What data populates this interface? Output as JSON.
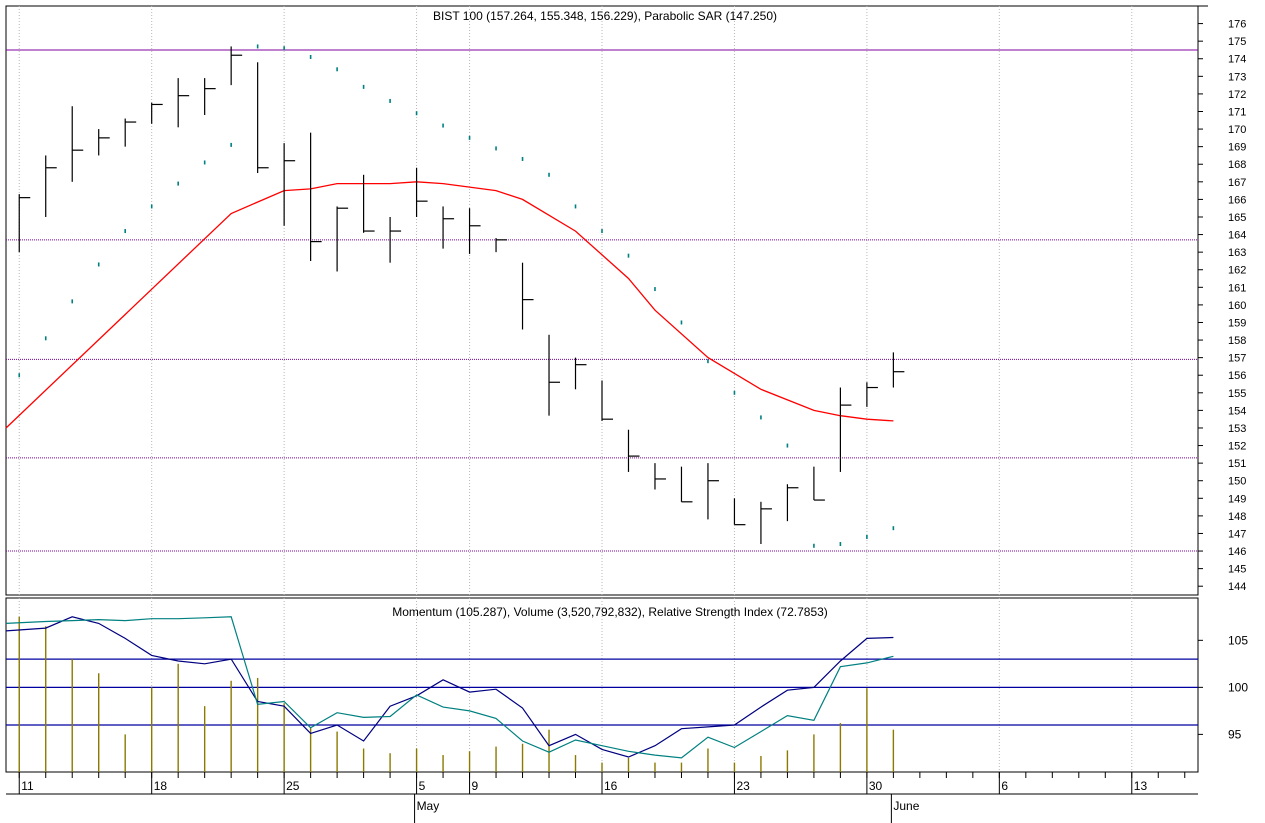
{
  "chart_data": [
    {
      "type": "ohlc",
      "title": "BIST 100 (157.264, 155.348, 156.229), Parabolic SAR (147.250)",
      "ylim": [
        143.5,
        177
      ],
      "y_ticks": [
        144,
        145,
        146,
        147,
        148,
        149,
        150,
        151,
        152,
        153,
        154,
        155,
        156,
        157,
        158,
        159,
        160,
        161,
        162,
        163,
        164,
        165,
        166,
        167,
        168,
        169,
        170,
        171,
        172,
        173,
        174,
        175,
        176
      ],
      "horizontal_lines": [
        {
          "value": 174.5,
          "color": "#8000a0",
          "style": "solid"
        },
        {
          "value": 163.7,
          "color": "#8000a0",
          "style": "dotted"
        },
        {
          "value": 156.9,
          "color": "#8000a0",
          "style": "dotted"
        },
        {
          "value": 151.3,
          "color": "#8000a0",
          "style": "dotted"
        },
        {
          "value": 146.0,
          "color": "#8000a0",
          "style": "dotted"
        }
      ],
      "bars": [
        {
          "x": 0,
          "o": 164.0,
          "h": 166.3,
          "l": 163.0,
          "c": 166.1
        },
        {
          "x": 1,
          "o": 166.5,
          "h": 168.5,
          "l": 165.0,
          "c": 167.8
        },
        {
          "x": 2,
          "o": 168.0,
          "h": 171.3,
          "l": 167.0,
          "c": 168.8
        },
        {
          "x": 3,
          "o": 169.0,
          "h": 170.0,
          "l": 168.5,
          "c": 169.5
        },
        {
          "x": 4,
          "o": 169.3,
          "h": 170.6,
          "l": 169.0,
          "c": 170.4
        },
        {
          "x": 5,
          "o": 170.6,
          "h": 171.5,
          "l": 170.3,
          "c": 171.4
        },
        {
          "x": 6,
          "o": 171.2,
          "h": 172.9,
          "l": 170.1,
          "c": 171.9
        },
        {
          "x": 7,
          "o": 171.9,
          "h": 172.9,
          "l": 170.8,
          "c": 172.3
        },
        {
          "x": 8,
          "o": 173.9,
          "h": 174.7,
          "l": 172.5,
          "c": 174.2
        },
        {
          "x": 9,
          "o": 173.8,
          "h": 173.8,
          "l": 167.5,
          "c": 167.8
        },
        {
          "x": 10,
          "o": 168.1,
          "h": 169.2,
          "l": 164.5,
          "c": 168.2
        },
        {
          "x": 11,
          "o": 167.4,
          "h": 169.8,
          "l": 162.5,
          "c": 163.6
        },
        {
          "x": 12,
          "o": 164.0,
          "h": 165.6,
          "l": 161.9,
          "c": 165.5
        },
        {
          "x": 13,
          "o": 165.6,
          "h": 167.4,
          "l": 164.1,
          "c": 164.2
        },
        {
          "x": 14,
          "o": 164.3,
          "h": 165.0,
          "l": 162.4,
          "c": 164.2
        },
        {
          "x": 15,
          "o": 167.0,
          "h": 167.8,
          "l": 165.0,
          "c": 165.9
        },
        {
          "x": 16,
          "o": 165.5,
          "h": 165.6,
          "l": 163.2,
          "c": 164.9
        },
        {
          "x": 17,
          "o": 164.9,
          "h": 165.5,
          "l": 162.9,
          "c": 164.5
        },
        {
          "x": 18,
          "o": 163.8,
          "h": 163.8,
          "l": 163.0,
          "c": 163.7
        },
        {
          "x": 19,
          "o": 162.4,
          "h": 162.4,
          "l": 158.6,
          "c": 160.3
        },
        {
          "x": 20,
          "o": 157.0,
          "h": 158.3,
          "l": 153.7,
          "c": 155.6
        },
        {
          "x": 21,
          "o": 156.6,
          "h": 157.0,
          "l": 155.2,
          "c": 156.6
        },
        {
          "x": 22,
          "o": 155.0,
          "h": 155.7,
          "l": 153.4,
          "c": 153.5
        },
        {
          "x": 23,
          "o": 151.7,
          "h": 152.9,
          "l": 150.5,
          "c": 151.4
        },
        {
          "x": 24,
          "o": 151.0,
          "h": 151.0,
          "l": 149.5,
          "c": 150.1
        },
        {
          "x": 25,
          "o": 150.8,
          "h": 150.8,
          "l": 148.8,
          "c": 148.8
        },
        {
          "x": 26,
          "o": 151.0,
          "h": 151.0,
          "l": 147.8,
          "c": 150.0
        },
        {
          "x": 27,
          "o": 149.0,
          "h": 149.0,
          "l": 147.5,
          "c": 147.5
        },
        {
          "x": 28,
          "o": 148.0,
          "h": 148.8,
          "l": 146.4,
          "c": 148.4
        },
        {
          "x": 29,
          "o": 148.0,
          "h": 149.8,
          "l": 147.7,
          "c": 149.6
        },
        {
          "x": 30,
          "o": 149.5,
          "h": 150.8,
          "l": 148.9,
          "c": 148.9
        },
        {
          "x": 31,
          "o": 150.6,
          "h": 155.3,
          "l": 150.5,
          "c": 154.3
        },
        {
          "x": 32,
          "o": 154.4,
          "h": 155.6,
          "l": 154.2,
          "c": 155.3
        },
        {
          "x": 33,
          "o": 155.7,
          "h": 157.3,
          "l": 155.3,
          "c": 156.2
        }
      ],
      "sar": [
        {
          "x": 0,
          "v": 156.0
        },
        {
          "x": 1,
          "v": 158.1
        },
        {
          "x": 2,
          "v": 160.2
        },
        {
          "x": 3,
          "v": 162.3
        },
        {
          "x": 4,
          "v": 164.2
        },
        {
          "x": 5,
          "v": 165.6
        },
        {
          "x": 6,
          "v": 166.9
        },
        {
          "x": 7,
          "v": 168.1
        },
        {
          "x": 8,
          "v": 169.1
        },
        {
          "x": 9,
          "v": 174.7
        },
        {
          "x": 10,
          "v": 174.6
        },
        {
          "x": 11,
          "v": 174.1
        },
        {
          "x": 12,
          "v": 173.4
        },
        {
          "x": 13,
          "v": 172.4
        },
        {
          "x": 14,
          "v": 171.6
        },
        {
          "x": 15,
          "v": 170.9
        },
        {
          "x": 16,
          "v": 170.2
        },
        {
          "x": 17,
          "v": 169.5
        },
        {
          "x": 18,
          "v": 168.9
        },
        {
          "x": 19,
          "v": 168.3
        },
        {
          "x": 20,
          "v": 167.4
        },
        {
          "x": 21,
          "v": 165.6
        },
        {
          "x": 22,
          "v": 164.2
        },
        {
          "x": 23,
          "v": 162.8
        },
        {
          "x": 24,
          "v": 160.9
        },
        {
          "x": 25,
          "v": 159.0
        },
        {
          "x": 26,
          "v": 156.8
        },
        {
          "x": 27,
          "v": 155.0
        },
        {
          "x": 28,
          "v": 153.6
        },
        {
          "x": 29,
          "v": 152.0
        },
        {
          "x": 30,
          "v": 146.3
        },
        {
          "x": 31,
          "v": 146.4
        },
        {
          "x": 32,
          "v": 146.8
        },
        {
          "x": 33,
          "v": 147.3
        }
      ],
      "moving_average": [
        {
          "x": -0.5,
          "v": 153.0
        },
        {
          "x": 8,
          "v": 165.2
        },
        {
          "x": 10,
          "v": 166.5
        },
        {
          "x": 11,
          "v": 166.6
        },
        {
          "x": 12,
          "v": 166.9
        },
        {
          "x": 14,
          "v": 166.9
        },
        {
          "x": 15,
          "v": 167.0
        },
        {
          "x": 16,
          "v": 166.9
        },
        {
          "x": 18,
          "v": 166.5
        },
        {
          "x": 19,
          "v": 166.0
        },
        {
          "x": 21,
          "v": 164.2
        },
        {
          "x": 23,
          "v": 161.5
        },
        {
          "x": 24,
          "v": 159.7
        },
        {
          "x": 26,
          "v": 157.0
        },
        {
          "x": 28,
          "v": 155.2
        },
        {
          "x": 30,
          "v": 154.0
        },
        {
          "x": 31,
          "v": 153.7
        },
        {
          "x": 32,
          "v": 153.5
        },
        {
          "x": 33,
          "v": 153.4
        }
      ],
      "colors": {
        "bars": "#000000",
        "sar": "#008080",
        "moving_average": "#ff0000"
      }
    },
    {
      "type": "line+bar",
      "title": "Momentum (105.287), Volume (3,520,792,832), Relative Strength Index (72.7853)",
      "ylim": [
        91,
        109.5
      ],
      "y_ticks": [
        95,
        100,
        105
      ],
      "horizontal_lines": [
        {
          "value": 103.0,
          "color": "#0000a0"
        },
        {
          "value": 100.0,
          "color": "#0000a0"
        },
        {
          "value": 96.0,
          "color": "#0000a0"
        }
      ],
      "series": [
        {
          "kind": "line",
          "color": "#000080",
          "points": [
            {
              "x": -0.5,
              "v": 106.0
            },
            {
              "x": 1,
              "v": 106.3
            },
            {
              "x": 2,
              "v": 107.5
            },
            {
              "x": 3,
              "v": 106.8
            },
            {
              "x": 4,
              "v": 105.2
            },
            {
              "x": 5,
              "v": 103.4
            },
            {
              "x": 6,
              "v": 102.8
            },
            {
              "x": 7,
              "v": 102.5
            },
            {
              "x": 8,
              "v": 103.0
            },
            {
              "x": 9,
              "v": 98.5
            },
            {
              "x": 10,
              "v": 98.0
            },
            {
              "x": 11,
              "v": 95.1
            },
            {
              "x": 12,
              "v": 96.0
            },
            {
              "x": 13,
              "v": 94.3
            },
            {
              "x": 14,
              "v": 98.0
            },
            {
              "x": 15,
              "v": 99.1
            },
            {
              "x": 16,
              "v": 100.8
            },
            {
              "x": 17,
              "v": 99.5
            },
            {
              "x": 18,
              "v": 99.8
            },
            {
              "x": 19,
              "v": 97.8
            },
            {
              "x": 20,
              "v": 93.8
            },
            {
              "x": 21,
              "v": 95.0
            },
            {
              "x": 22,
              "v": 93.4
            },
            {
              "x": 23,
              "v": 92.6
            },
            {
              "x": 24,
              "v": 93.8
            },
            {
              "x": 25,
              "v": 95.6
            },
            {
              "x": 26,
              "v": 95.8
            },
            {
              "x": 27,
              "v": 96.0
            },
            {
              "x": 28,
              "v": 97.9
            },
            {
              "x": 29,
              "v": 99.7
            },
            {
              "x": 30,
              "v": 100.0
            },
            {
              "x": 31,
              "v": 102.8
            },
            {
              "x": 32,
              "v": 105.2
            },
            {
              "x": 33,
              "v": 105.3
            }
          ]
        },
        {
          "kind": "line",
          "color": "#008080",
          "points": [
            {
              "x": -0.5,
              "v": 106.8
            },
            {
              "x": 1,
              "v": 107.0
            },
            {
              "x": 2,
              "v": 107.1
            },
            {
              "x": 3,
              "v": 107.2
            },
            {
              "x": 4,
              "v": 107.1
            },
            {
              "x": 5,
              "v": 107.3
            },
            {
              "x": 6,
              "v": 107.3
            },
            {
              "x": 7,
              "v": 107.4
            },
            {
              "x": 8,
              "v": 107.5
            },
            {
              "x": 9,
              "v": 98.2
            },
            {
              "x": 10,
              "v": 98.5
            },
            {
              "x": 11,
              "v": 95.7
            },
            {
              "x": 12,
              "v": 97.3
            },
            {
              "x": 13,
              "v": 96.8
            },
            {
              "x": 14,
              "v": 96.9
            },
            {
              "x": 15,
              "v": 99.2
            },
            {
              "x": 16,
              "v": 97.9
            },
            {
              "x": 17,
              "v": 97.5
            },
            {
              "x": 18,
              "v": 96.7
            },
            {
              "x": 19,
              "v": 94.3
            },
            {
              "x": 20,
              "v": 93.1
            },
            {
              "x": 21,
              "v": 94.4
            },
            {
              "x": 22,
              "v": 93.8
            },
            {
              "x": 23,
              "v": 93.2
            },
            {
              "x": 24,
              "v": 92.8
            },
            {
              "x": 25,
              "v": 92.5
            },
            {
              "x": 26,
              "v": 94.7
            },
            {
              "x": 27,
              "v": 93.6
            },
            {
              "x": 28,
              "v": 95.3
            },
            {
              "x": 29,
              "v": 97.0
            },
            {
              "x": 30,
              "v": 96.5
            },
            {
              "x": 31,
              "v": 102.2
            },
            {
              "x": 32,
              "v": 102.6
            },
            {
              "x": 33,
              "v": 103.3
            }
          ]
        },
        {
          "kind": "volume",
          "color": "#8a7a00",
          "points": [
            {
              "x": 0,
              "v": 107.5
            },
            {
              "x": 1,
              "v": 106.5
            },
            {
              "x": 2,
              "v": 103.0
            },
            {
              "x": 3,
              "v": 101.5
            },
            {
              "x": 4,
              "v": 95.0
            },
            {
              "x": 5,
              "v": 100.0
            },
            {
              "x": 6,
              "v": 102.5
            },
            {
              "x": 7,
              "v": 98.0
            },
            {
              "x": 8,
              "v": 100.7
            },
            {
              "x": 9,
              "v": 101.0
            },
            {
              "x": 10,
              "v": 98.3
            },
            {
              "x": 11,
              "v": 95.8
            },
            {
              "x": 12,
              "v": 95.3
            },
            {
              "x": 13,
              "v": 93.5
            },
            {
              "x": 14,
              "v": 93.0
            },
            {
              "x": 15,
              "v": 93.5
            },
            {
              "x": 16,
              "v": 92.8
            },
            {
              "x": 17,
              "v": 93.2
            },
            {
              "x": 18,
              "v": 93.7
            },
            {
              "x": 19,
              "v": 94.0
            },
            {
              "x": 20,
              "v": 95.5
            },
            {
              "x": 21,
              "v": 92.8
            },
            {
              "x": 22,
              "v": 92.0
            },
            {
              "x": 23,
              "v": 92.5
            },
            {
              "x": 24,
              "v": 92.0
            },
            {
              "x": 25,
              "v": 92.0
            },
            {
              "x": 26,
              "v": 93.5
            },
            {
              "x": 27,
              "v": 92.0
            },
            {
              "x": 28,
              "v": 92.7
            },
            {
              "x": 29,
              "v": 93.3
            },
            {
              "x": 30,
              "v": 95.0
            },
            {
              "x": 31,
              "v": 96.2
            },
            {
              "x": 32,
              "v": 99.9
            },
            {
              "x": 33,
              "v": 95.5
            }
          ]
        }
      ]
    }
  ],
  "x_axis": {
    "date_labels": [
      {
        "x": 0,
        "label": "11"
      },
      {
        "x": 5,
        "label": "18"
      },
      {
        "x": 10,
        "label": "25"
      },
      {
        "x": 15,
        "label": "5"
      },
      {
        "x": 17,
        "label": "9"
      },
      {
        "x": 22,
        "label": "16"
      },
      {
        "x": 27,
        "label": "23"
      },
      {
        "x": 32,
        "label": "30"
      },
      {
        "x": 37,
        "label": "6"
      },
      {
        "x": 42,
        "label": "13"
      }
    ],
    "month_labels": [
      {
        "x": 15,
        "label": "May"
      },
      {
        "x": 33,
        "label": "June"
      }
    ],
    "x_range": [
      -0.5,
      44.5
    ]
  }
}
